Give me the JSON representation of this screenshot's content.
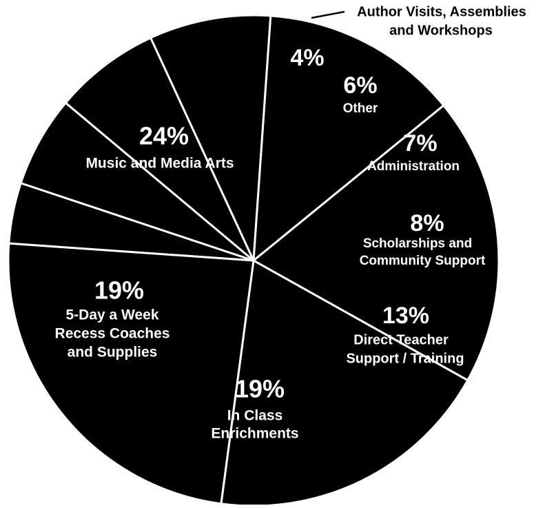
{
  "chart_data": {
    "type": "pie",
    "title": "",
    "slices": [
      {
        "percent_label": "4%",
        "value": 4,
        "category": "Author Visits, Assemblies and Workshops",
        "label_lines": []
      },
      {
        "percent_label": "6%",
        "value": 6,
        "category": "Other",
        "label_lines": [
          "Other"
        ]
      },
      {
        "percent_label": "7%",
        "value": 7,
        "category": "Administration",
        "label_lines": [
          "Administration"
        ]
      },
      {
        "percent_label": "8%",
        "value": 8,
        "category": "Scholarships and Community Support",
        "label_lines": [
          "Scholarships and",
          "Community Support"
        ]
      },
      {
        "percent_label": "13%",
        "value": 13,
        "category": "Direct Teacher Support / Training",
        "label_lines": [
          "Direct Teacher",
          "Support / Training"
        ]
      },
      {
        "percent_label": "19%",
        "value": 19,
        "category": "In Class Enrichments",
        "label_lines": [
          "In Class",
          "Enrichments"
        ]
      },
      {
        "percent_label": "19%",
        "value": 19,
        "category": "5-Day a Week Recess Coaches and Supplies",
        "label_lines": [
          "5-Day a Week",
          "Recess Coaches",
          "and Supplies"
        ]
      },
      {
        "percent_label": "24%",
        "value": 24,
        "category": "Music and Media Arts",
        "label_lines": [
          "Music and Media Arts"
        ]
      }
    ],
    "callout": {
      "lines": [
        "Author Visits, Assemblies",
        "and Workshops"
      ]
    },
    "colors": {
      "slice_fill": "#000000",
      "slice_border": "#ffffff",
      "label_text": "#ffffff",
      "callout_text": "#000000"
    }
  }
}
